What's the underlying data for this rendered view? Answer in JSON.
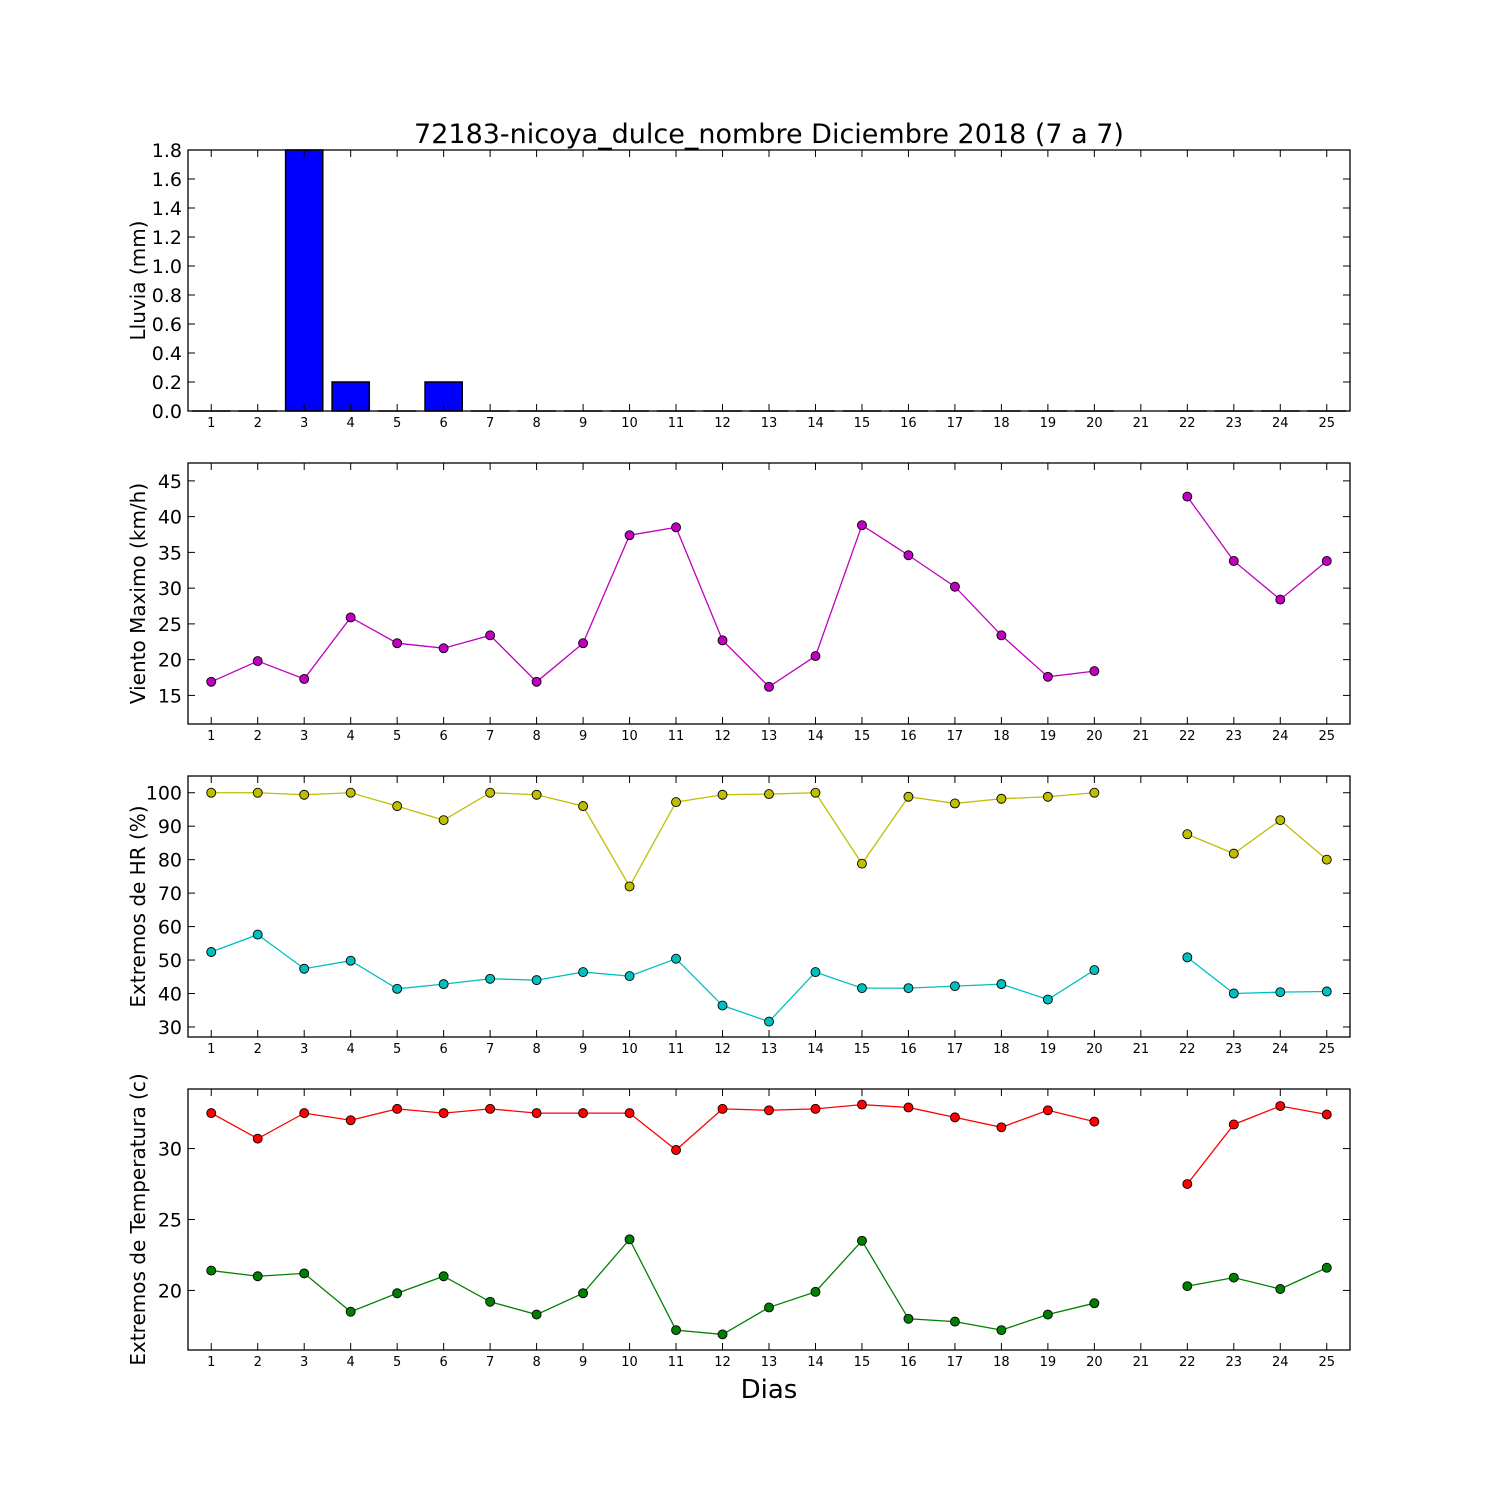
{
  "figure": {
    "title": "72183-nicoya_dulce_nombre Diciembre 2018  (7 a 7)",
    "xlabel": "Dias"
  },
  "chart_data": [
    {
      "type": "bar",
      "ylabel": "Lluvia (mm)",
      "ylim": [
        0,
        1.8
      ],
      "yticks": [
        0.0,
        0.2,
        0.4,
        0.6,
        0.8,
        1.0,
        1.2,
        1.4,
        1.6,
        1.8
      ],
      "ytick_decimals": 1,
      "xlim": [
        0.5,
        25.5
      ],
      "categories": [
        1,
        2,
        3,
        4,
        5,
        6,
        7,
        8,
        9,
        10,
        11,
        12,
        13,
        14,
        15,
        16,
        17,
        18,
        19,
        20,
        21,
        22,
        23,
        24,
        25
      ],
      "series": [
        {
          "color": "#0000ff",
          "values": [
            0,
            0,
            1.8,
            0.2,
            0,
            0.2,
            0,
            0,
            0,
            0,
            0,
            0,
            0,
            0,
            0,
            0,
            0,
            0,
            0,
            0,
            null,
            0,
            0,
            0,
            0
          ]
        }
      ]
    },
    {
      "type": "line",
      "ylabel": "Viento Maximo (km/h)",
      "ylim": [
        11,
        47.5
      ],
      "yticks": [
        15,
        20,
        25,
        30,
        35,
        40,
        45
      ],
      "ytick_decimals": 0,
      "xlim": [
        0.5,
        25.5
      ],
      "x": [
        1,
        2,
        3,
        4,
        5,
        6,
        7,
        8,
        9,
        10,
        11,
        12,
        13,
        14,
        15,
        16,
        17,
        18,
        19,
        20,
        21,
        22,
        23,
        24,
        25
      ],
      "series": [
        {
          "color": "#bf00bf",
          "values": [
            16.9,
            19.8,
            17.3,
            25.9,
            22.3,
            21.6,
            23.4,
            16.9,
            22.3,
            37.4,
            38.5,
            22.7,
            16.2,
            20.5,
            38.8,
            34.6,
            30.2,
            23.4,
            17.6,
            18.4,
            null,
            42.8,
            33.8,
            28.4,
            33.8
          ]
        }
      ]
    },
    {
      "type": "line",
      "ylabel": "Extremos de HR (%)",
      "ylim": [
        27,
        105
      ],
      "yticks": [
        30,
        40,
        50,
        60,
        70,
        80,
        90,
        100
      ],
      "ytick_decimals": 0,
      "xlim": [
        0.5,
        25.5
      ],
      "x": [
        1,
        2,
        3,
        4,
        5,
        6,
        7,
        8,
        9,
        10,
        11,
        12,
        13,
        14,
        15,
        16,
        17,
        18,
        19,
        20,
        21,
        22,
        23,
        24,
        25
      ],
      "series": [
        {
          "color": "#bfbf00",
          "values": [
            100,
            100,
            99.4,
            100,
            96,
            91.8,
            100,
            99.4,
            96,
            72,
            97.2,
            99.4,
            99.6,
            100,
            78.8,
            98.8,
            96.8,
            98.2,
            98.8,
            100,
            null,
            87.6,
            81.8,
            91.8,
            80
          ]
        },
        {
          "color": "#00bfbf",
          "values": [
            52.4,
            57.6,
            47.4,
            49.8,
            41.4,
            42.8,
            44.4,
            44,
            46.4,
            45.2,
            50.4,
            36.4,
            31.6,
            46.4,
            41.6,
            41.6,
            42.2,
            42.8,
            38.2,
            47,
            null,
            50.8,
            40,
            40.4,
            40.6
          ]
        }
      ]
    },
    {
      "type": "line",
      "ylabel": "Extremos de Temperatura (c)",
      "ylim": [
        15.8,
        34.2
      ],
      "yticks": [
        20,
        25,
        30
      ],
      "ytick_decimals": 0,
      "xlim": [
        0.5,
        25.5
      ],
      "x": [
        1,
        2,
        3,
        4,
        5,
        6,
        7,
        8,
        9,
        10,
        11,
        12,
        13,
        14,
        15,
        16,
        17,
        18,
        19,
        20,
        21,
        22,
        23,
        24,
        25
      ],
      "series": [
        {
          "color": "#ff0000",
          "values": [
            32.5,
            30.7,
            32.5,
            32,
            32.8,
            32.5,
            32.8,
            32.5,
            32.5,
            32.5,
            29.9,
            32.8,
            32.7,
            32.8,
            33.1,
            32.9,
            32.2,
            31.5,
            32.7,
            31.9,
            null,
            27.5,
            31.7,
            33,
            32.4
          ]
        },
        {
          "color": "#008000",
          "values": [
            21.4,
            21,
            21.2,
            18.5,
            19.8,
            21,
            19.2,
            18.3,
            19.8,
            23.6,
            17.2,
            16.9,
            18.8,
            19.9,
            23.5,
            18,
            17.8,
            17.2,
            18.3,
            19.1,
            null,
            20.3,
            20.9,
            20.1,
            21.6
          ]
        }
      ]
    }
  ]
}
